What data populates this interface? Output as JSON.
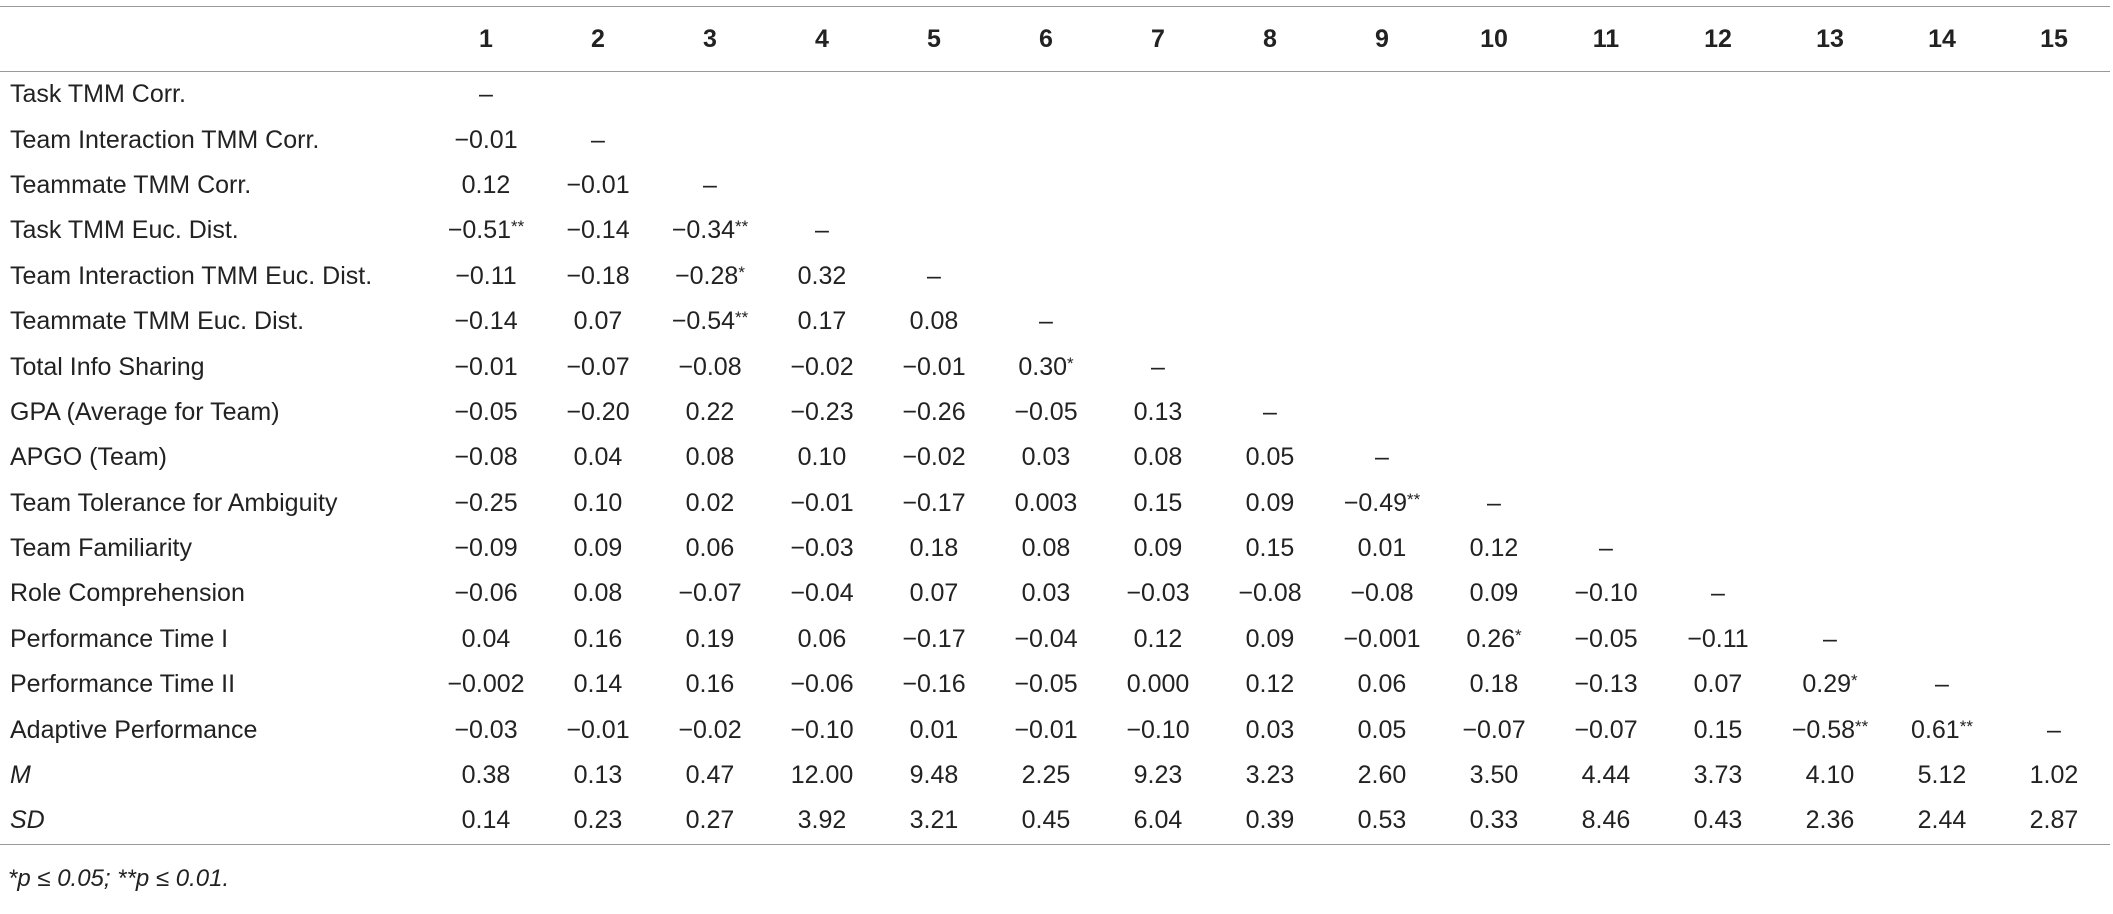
{
  "table": {
    "header": [
      "1",
      "2",
      "3",
      "4",
      "5",
      "6",
      "7",
      "8",
      "9",
      "10",
      "11",
      "12",
      "13",
      "14",
      "15"
    ],
    "rows": [
      {
        "label": "Task TMM Corr.",
        "cells": [
          "–"
        ]
      },
      {
        "label": "Team Interaction TMM Corr.",
        "cells": [
          "−0.01",
          "–"
        ]
      },
      {
        "label": "Teammate TMM Corr.",
        "cells": [
          "0.12",
          "−0.01",
          "–"
        ]
      },
      {
        "label": "Task TMM Euc. Dist.",
        "cells": [
          "−0.51**",
          "−0.14",
          "−0.34**",
          "–"
        ]
      },
      {
        "label": "Team Interaction TMM Euc. Dist.",
        "cells": [
          "−0.11",
          "−0.18",
          "−0.28*",
          "0.32",
          "–"
        ]
      },
      {
        "label": "Teammate TMM Euc. Dist.",
        "cells": [
          "−0.14",
          "0.07",
          "−0.54**",
          "0.17",
          "0.08",
          "–"
        ]
      },
      {
        "label": "Total Info Sharing",
        "cells": [
          "−0.01",
          "−0.07",
          "−0.08",
          "−0.02",
          "−0.01",
          "0.30*",
          "–"
        ]
      },
      {
        "label": "GPA (Average for Team)",
        "cells": [
          "−0.05",
          "−0.20",
          "0.22",
          "−0.23",
          "−0.26",
          "−0.05",
          "0.13",
          "–"
        ]
      },
      {
        "label": "APGO (Team)",
        "cells": [
          "−0.08",
          "0.04",
          "0.08",
          "0.10",
          "−0.02",
          "0.03",
          "0.08",
          "0.05",
          "–"
        ]
      },
      {
        "label": "Team Tolerance for Ambiguity",
        "cells": [
          "−0.25",
          "0.10",
          "0.02",
          "−0.01",
          "−0.17",
          "0.003",
          "0.15",
          "0.09",
          "−0.49**",
          "–"
        ]
      },
      {
        "label": "Team Familiarity",
        "cells": [
          "−0.09",
          "0.09",
          "0.06",
          "−0.03",
          "0.18",
          "0.08",
          "0.09",
          "0.15",
          "0.01",
          "0.12",
          "–"
        ]
      },
      {
        "label": "Role Comprehension",
        "cells": [
          "−0.06",
          "0.08",
          "−0.07",
          "−0.04",
          "0.07",
          "0.03",
          "−0.03",
          "−0.08",
          "−0.08",
          "0.09",
          "−0.10",
          "–"
        ]
      },
      {
        "label": "Performance Time I",
        "cells": [
          "0.04",
          "0.16",
          "0.19",
          "0.06",
          "−0.17",
          "−0.04",
          "0.12",
          "0.09",
          "−0.001",
          "0.26*",
          "−0.05",
          "−0.11",
          "–"
        ]
      },
      {
        "label": "Performance Time II",
        "cells": [
          "−0.002",
          "0.14",
          "0.16",
          "−0.06",
          "−0.16",
          "−0.05",
          "0.000",
          "0.12",
          "0.06",
          "0.18",
          "−0.13",
          "0.07",
          "0.29*",
          "–"
        ]
      },
      {
        "label": "Adaptive Performance",
        "cells": [
          "−0.03",
          "−0.01",
          "−0.02",
          "−0.10",
          "0.01",
          "−0.01",
          "−0.10",
          "0.03",
          "0.05",
          "−0.07",
          "−0.07",
          "0.15",
          "−0.58**",
          "0.61**",
          "–"
        ]
      },
      {
        "label": "M",
        "cells": [
          "0.38",
          "0.13",
          "0.47",
          "12.00",
          "9.48",
          "2.25",
          "9.23",
          "3.23",
          "2.60",
          "3.50",
          "4.44",
          "3.73",
          "4.10",
          "5.12",
          "1.02"
        ]
      },
      {
        "label": "SD",
        "cells": [
          "0.14",
          "0.23",
          "0.27",
          "3.92",
          "3.21",
          "0.45",
          "6.04",
          "0.39",
          "0.53",
          "0.33",
          "8.46",
          "0.43",
          "2.36",
          "2.44",
          "2.87"
        ]
      }
    ]
  },
  "footnote": "*p ≤ 0.05; **p ≤ 0.01."
}
